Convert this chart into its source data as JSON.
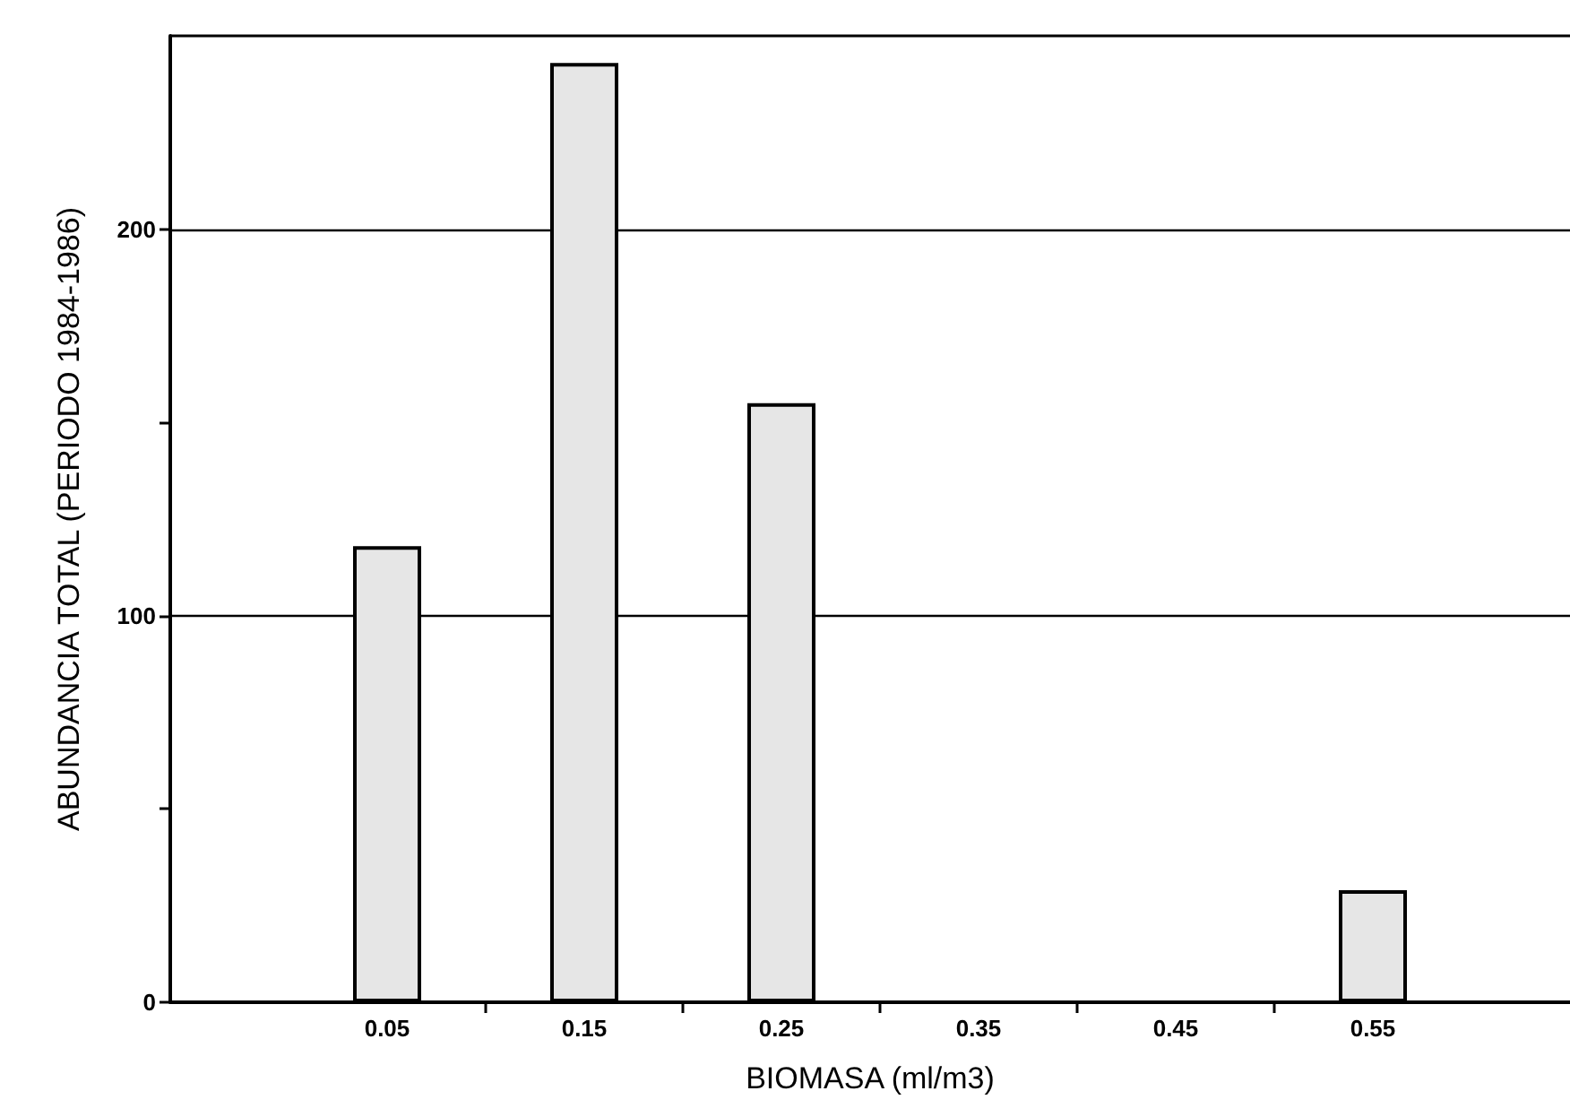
{
  "chart_data": {
    "type": "bar",
    "xlabel": "BIOMASA (ml/m3)",
    "ylabel": "ABUNDANCIA TOTAL (PERIODO 1984-1986)",
    "x": [
      0.05,
      0.15,
      0.25,
      0.55
    ],
    "values": [
      118,
      243,
      155,
      29
    ],
    "color": "#e6e6e6",
    "xlim": [
      -0.06,
      0.65
    ],
    "xticks": [
      0.05,
      {
        "value": 0.1,
        "label": null
      },
      0.15,
      {
        "value": 0.2,
        "label": null
      },
      0.25,
      {
        "value": 0.3,
        "label": null
      },
      0.35,
      {
        "value": 0.4,
        "label": null
      },
      0.45,
      {
        "value": 0.5,
        "label": null
      },
      0.55
    ],
    "ylim": [
      0,
      250
    ],
    "yticks": [
      0,
      {
        "value": 50,
        "label": null
      },
      100,
      {
        "value": 150,
        "label": null
      },
      200
    ],
    "grid": "y"
  }
}
